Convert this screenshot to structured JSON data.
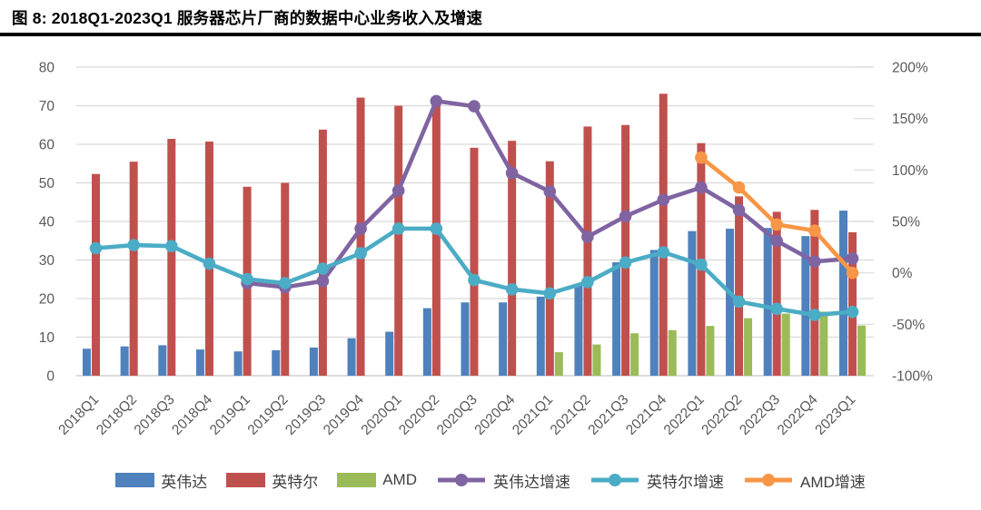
{
  "title": "图 8: 2018Q1-2023Q1 服务器芯片厂商的数据中心业务收入及增速",
  "chart_data": {
    "type": "combo bar+line",
    "title": "2018Q1-2023Q1 服务器芯片厂商的数据中心业务收入及增速",
    "categories": [
      "2018Q1",
      "2018Q2",
      "2018Q3",
      "2018Q4",
      "2019Q1",
      "2019Q2",
      "2019Q3",
      "2019Q4",
      "2020Q1",
      "2020Q2",
      "2020Q3",
      "2020Q4",
      "2021Q1",
      "2021Q2",
      "2021Q3",
      "2021Q4",
      "2022Q1",
      "2022Q2",
      "2022Q3",
      "2022Q4",
      "2023Q1"
    ],
    "bar_series": [
      {
        "key": "nvidia-revenue",
        "name": "英伟达",
        "color": "#4F81BD",
        "axis": "left",
        "values": [
          7.0,
          7.6,
          7.9,
          6.8,
          6.3,
          6.6,
          7.3,
          9.7,
          11.4,
          17.5,
          19.0,
          19.0,
          20.5,
          23.7,
          29.4,
          32.6,
          37.5,
          38.1,
          38.3,
          36.2,
          42.8
        ]
      },
      {
        "key": "intel-revenue",
        "name": "英特尔",
        "color": "#C0504D",
        "axis": "left",
        "values": [
          52.3,
          55.5,
          61.4,
          60.7,
          49.0,
          50.0,
          63.8,
          72.1,
          70.0,
          71.2,
          59.1,
          60.9,
          55.6,
          64.6,
          65.0,
          73.1,
          60.3,
          46.5,
          42.5,
          43.0,
          37.2
        ]
      },
      {
        "key": "amd-revenue",
        "name": "AMD",
        "color": "#9BBB59",
        "axis": "left",
        "values": [
          null,
          null,
          null,
          null,
          null,
          null,
          null,
          null,
          null,
          null,
          null,
          null,
          6.1,
          8.1,
          11.0,
          11.8,
          12.9,
          14.9,
          16.1,
          16.6,
          13.0
        ]
      }
    ],
    "line_series": [
      {
        "key": "nvidia-growth",
        "name": "英伟达增速",
        "color": "#8064A2",
        "axis": "right",
        "values_pct": [
          null,
          null,
          null,
          null,
          -10,
          -14,
          -8,
          43,
          80,
          167,
          162,
          97,
          79,
          35,
          55,
          71,
          83,
          61,
          31,
          11,
          14
        ]
      },
      {
        "key": "intel-growth",
        "name": "英特尔增速",
        "color": "#4BACC6",
        "axis": "right",
        "values_pct": [
          24,
          27,
          26,
          9,
          -6,
          -10,
          4,
          19,
          43,
          43,
          -7,
          -16,
          -20,
          -9,
          10,
          20,
          8,
          -28,
          -35,
          -41,
          -38
        ]
      },
      {
        "key": "amd-growth",
        "name": "AMD增速",
        "color": "#F79646",
        "axis": "right",
        "values_pct": [
          null,
          null,
          null,
          null,
          null,
          null,
          null,
          null,
          null,
          null,
          null,
          null,
          null,
          null,
          null,
          null,
          112,
          83,
          47,
          41,
          0
        ]
      }
    ],
    "left_axis": {
      "min": 0,
      "max": 80,
      "step": 10,
      "tick_labels": [
        "0",
        "10",
        "20",
        "30",
        "40",
        "50",
        "60",
        "70",
        "80"
      ]
    },
    "right_axis": {
      "min": -100,
      "max": 200,
      "step": 50,
      "tick_labels": [
        "200%",
        "150%",
        "100%",
        "50%",
        "0%",
        "-50%",
        "-100%"
      ],
      "tick_values": [
        200,
        150,
        100,
        50,
        0,
        -50,
        -100
      ]
    },
    "grid": true,
    "legend_position": "bottom"
  },
  "styles": {
    "background": "#ffffff",
    "title_color": "#000000",
    "rule_color": "#000000",
    "grid_color": "#d9d9d9",
    "axis_line_color": "#c6c6c6",
    "axis_text_color": "#595959",
    "legend_text_color": "#404040"
  }
}
